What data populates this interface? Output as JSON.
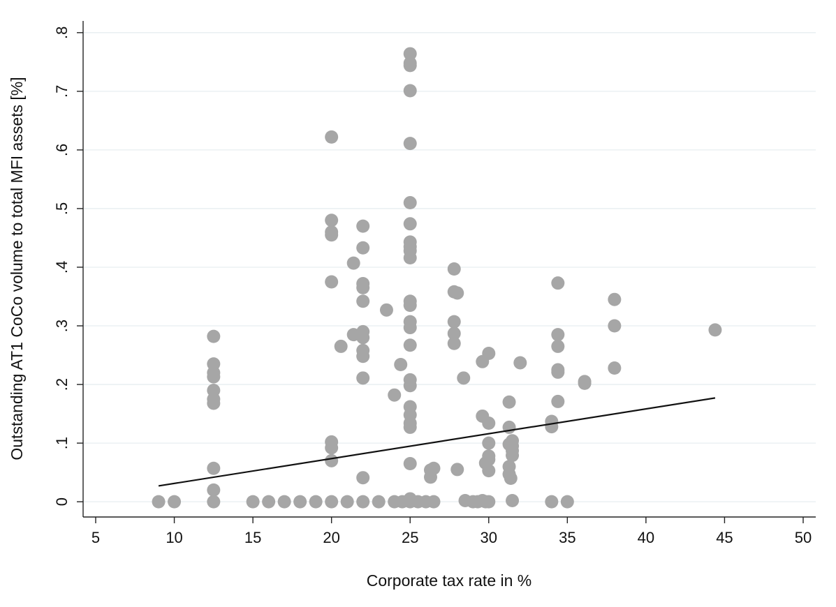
{
  "chart_data": {
    "type": "scatter",
    "title": "",
    "xlabel": "Corporate tax rate in %",
    "ylabel": "Outstanding AT1 CoCo volume to total MFI assets [%]",
    "xlim": [
      4.2,
      50.8
    ],
    "ylim": [
      -0.026,
      0.82
    ],
    "x_ticks": [
      5,
      10,
      15,
      20,
      25,
      30,
      35,
      40,
      45,
      50
    ],
    "y_ticks": [
      0,
      0.1,
      0.2,
      0.3,
      0.4,
      0.5,
      0.6,
      0.7,
      0.8
    ],
    "y_tick_labels": [
      "0",
      ".1",
      ".2",
      ".3",
      ".4",
      ".5",
      ".6",
      ".7",
      ".8"
    ],
    "grid": "horizontal",
    "legend": "none",
    "point_color": "#a6a6a6",
    "line_color": "#111111",
    "series": [
      {
        "type": "scatter",
        "points": [
          [
            9,
            0
          ],
          [
            10,
            0
          ],
          [
            12.5,
            0.282
          ],
          [
            12.5,
            0.235
          ],
          [
            12.5,
            0.22
          ],
          [
            12.5,
            0.213
          ],
          [
            12.5,
            0.19
          ],
          [
            12.5,
            0.175
          ],
          [
            12.5,
            0.168
          ],
          [
            12.5,
            0.057
          ],
          [
            12.5,
            0.02
          ],
          [
            12.5,
            0
          ],
          [
            15,
            0
          ],
          [
            16,
            0
          ],
          [
            17,
            0
          ],
          [
            18,
            0
          ],
          [
            19,
            0
          ],
          [
            20,
            0.622
          ],
          [
            20,
            0.48
          ],
          [
            20,
            0.46
          ],
          [
            20,
            0.455
          ],
          [
            20,
            0.375
          ],
          [
            20,
            0.102
          ],
          [
            20,
            0.092
          ],
          [
            20,
            0.07
          ],
          [
            20,
            0
          ],
          [
            20.6,
            0.265
          ],
          [
            21,
            0
          ],
          [
            21.4,
            0.407
          ],
          [
            21.4,
            0.285
          ],
          [
            22,
            0.47
          ],
          [
            22,
            0.433
          ],
          [
            22,
            0.372
          ],
          [
            22,
            0.365
          ],
          [
            22,
            0.342
          ],
          [
            22,
            0.29
          ],
          [
            22,
            0.28
          ],
          [
            22,
            0.258
          ],
          [
            22,
            0.248
          ],
          [
            22,
            0.211
          ],
          [
            22,
            0.041
          ],
          [
            22,
            0
          ],
          [
            23,
            0
          ],
          [
            23.5,
            0.327
          ],
          [
            24,
            0.182
          ],
          [
            24,
            0
          ],
          [
            24.4,
            0.234
          ],
          [
            24.5,
            0
          ],
          [
            25,
            0.764
          ],
          [
            25,
            0.748
          ],
          [
            25,
            0.744
          ],
          [
            25,
            0.701
          ],
          [
            25,
            0.611
          ],
          [
            25,
            0.51
          ],
          [
            25,
            0.474
          ],
          [
            25,
            0.443
          ],
          [
            25,
            0.435
          ],
          [
            25,
            0.428
          ],
          [
            25,
            0.416
          ],
          [
            25,
            0.342
          ],
          [
            25,
            0.335
          ],
          [
            25,
            0.307
          ],
          [
            25,
            0.297
          ],
          [
            25,
            0.267
          ],
          [
            25,
            0.208
          ],
          [
            25,
            0.198
          ],
          [
            25,
            0.162
          ],
          [
            25,
            0.148
          ],
          [
            25,
            0.134
          ],
          [
            25,
            0.127
          ],
          [
            25,
            0.065
          ],
          [
            25,
            0.005
          ],
          [
            25,
            0
          ],
          [
            25.5,
            0
          ],
          [
            26,
            0
          ],
          [
            26.3,
            0.054
          ],
          [
            26.3,
            0.042
          ],
          [
            26.5,
            0.057
          ],
          [
            26.5,
            0
          ],
          [
            27.8,
            0.397
          ],
          [
            27.8,
            0.358
          ],
          [
            27.8,
            0.307
          ],
          [
            27.8,
            0.287
          ],
          [
            27.8,
            0.27
          ],
          [
            28,
            0.356
          ],
          [
            28,
            0.055
          ],
          [
            28.4,
            0.211
          ],
          [
            28.5,
            0.002
          ],
          [
            29,
            0
          ],
          [
            29.3,
            0
          ],
          [
            29.6,
            0.146
          ],
          [
            29.6,
            0.239
          ],
          [
            29.6,
            0.002
          ],
          [
            29.8,
            0.066
          ],
          [
            29.8,
            0
          ],
          [
            30,
            0.253
          ],
          [
            30,
            0.134
          ],
          [
            30,
            0.1
          ],
          [
            30,
            0.078
          ],
          [
            30,
            0.072
          ],
          [
            30,
            0.053
          ],
          [
            30,
            0
          ],
          [
            31.3,
            0.17
          ],
          [
            31.3,
            0.127
          ],
          [
            31.3,
            0.098
          ],
          [
            31.3,
            0.06
          ],
          [
            31.3,
            0.047
          ],
          [
            31.4,
            0.04
          ],
          [
            31.5,
            0.104
          ],
          [
            31.5,
            0.095
          ],
          [
            31.5,
            0.087
          ],
          [
            31.5,
            0.079
          ],
          [
            31.5,
            0.002
          ],
          [
            32,
            0.237
          ],
          [
            34,
            0.137
          ],
          [
            34,
            0.128
          ],
          [
            34,
            0
          ],
          [
            34.4,
            0.373
          ],
          [
            34.4,
            0.285
          ],
          [
            34.4,
            0.265
          ],
          [
            34.4,
            0.225
          ],
          [
            34.4,
            0.221
          ],
          [
            34.4,
            0.171
          ],
          [
            35,
            0
          ],
          [
            36.1,
            0.205
          ],
          [
            36.1,
            0.202
          ],
          [
            38,
            0.345
          ],
          [
            38,
            0.3
          ],
          [
            38,
            0.228
          ],
          [
            44.4,
            0.293
          ]
        ]
      },
      {
        "type": "line",
        "x": [
          9,
          44.4
        ],
        "y": [
          0.027,
          0.177
        ]
      }
    ]
  }
}
